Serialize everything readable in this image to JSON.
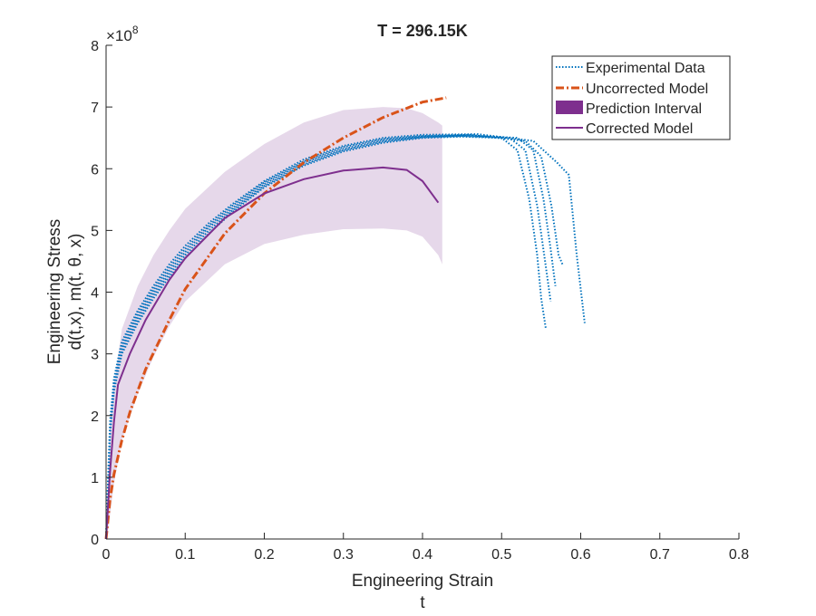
{
  "chart_data": {
    "type": "line",
    "title": "T = 296.15K",
    "xlabel": [
      "Engineering Strain",
      "t"
    ],
    "ylabel": [
      "Engineering Stress",
      "d(t,x), m(t, θ, x)"
    ],
    "xlim": [
      0,
      0.8
    ],
    "ylim": [
      0,
      8
    ],
    "y_exponent_label": "×10",
    "y_exponent_power": "8",
    "xticks": [
      0,
      0.1,
      0.2,
      0.3,
      0.4,
      0.5,
      0.6,
      0.7,
      0.8
    ],
    "xtick_labels": [
      "0",
      "0.1",
      "0.2",
      "0.3",
      "0.4",
      "0.5",
      "0.6",
      "0.7",
      "0.8"
    ],
    "yticks": [
      0,
      1,
      2,
      3,
      4,
      5,
      6,
      7,
      8
    ],
    "ytick_labels": [
      "0",
      "1",
      "2",
      "3",
      "4",
      "5",
      "6",
      "7",
      "8"
    ],
    "grid": false,
    "legend_position": "top-right",
    "colors": {
      "experimental": "#0072BD",
      "uncorrected": "#D95319",
      "interval_fill": "#E6D8EA",
      "interval_legend": "#7E2F8E",
      "corrected": "#7E2F8E"
    },
    "series": [
      {
        "name": "Experimental Data",
        "style": "dotted",
        "curves": [
          [
            [
              0,
              0
            ],
            [
              0.005,
              1.7
            ],
            [
              0.01,
              2.4
            ],
            [
              0.02,
              3.0
            ],
            [
              0.04,
              3.5
            ],
            [
              0.06,
              3.9
            ],
            [
              0.08,
              4.25
            ],
            [
              0.1,
              4.55
            ],
            [
              0.13,
              4.95
            ],
            [
              0.16,
              5.3
            ],
            [
              0.2,
              5.7
            ],
            [
              0.25,
              6.05
            ],
            [
              0.3,
              6.28
            ],
            [
              0.35,
              6.42
            ],
            [
              0.4,
              6.5
            ],
            [
              0.45,
              6.52
            ],
            [
              0.5,
              6.5
            ],
            [
              0.52,
              6.3
            ],
            [
              0.535,
              5.5
            ],
            [
              0.545,
              4.6
            ],
            [
              0.55,
              3.9
            ],
            [
              0.556,
              3.4
            ]
          ],
          [
            [
              0,
              0
            ],
            [
              0.005,
              1.75
            ],
            [
              0.01,
              2.45
            ],
            [
              0.02,
              3.05
            ],
            [
              0.04,
              3.55
            ],
            [
              0.06,
              3.95
            ],
            [
              0.08,
              4.3
            ],
            [
              0.1,
              4.6
            ],
            [
              0.13,
              5.0
            ],
            [
              0.16,
              5.33
            ],
            [
              0.2,
              5.72
            ],
            [
              0.25,
              6.07
            ],
            [
              0.3,
              6.3
            ],
            [
              0.35,
              6.44
            ],
            [
              0.4,
              6.51
            ],
            [
              0.45,
              6.53
            ],
            [
              0.51,
              6.5
            ],
            [
              0.53,
              6.3
            ],
            [
              0.545,
              5.4
            ],
            [
              0.555,
              4.5
            ],
            [
              0.562,
              3.85
            ]
          ],
          [
            [
              0,
              0
            ],
            [
              0.005,
              1.8
            ],
            [
              0.01,
              2.5
            ],
            [
              0.02,
              3.1
            ],
            [
              0.04,
              3.6
            ],
            [
              0.06,
              4.0
            ],
            [
              0.08,
              4.35
            ],
            [
              0.1,
              4.65
            ],
            [
              0.13,
              5.05
            ],
            [
              0.16,
              5.36
            ],
            [
              0.2,
              5.75
            ],
            [
              0.25,
              6.1
            ],
            [
              0.3,
              6.32
            ],
            [
              0.35,
              6.46
            ],
            [
              0.4,
              6.52
            ],
            [
              0.46,
              6.54
            ],
            [
              0.52,
              6.5
            ],
            [
              0.54,
              6.3
            ],
            [
              0.553,
              5.5
            ],
            [
              0.562,
              4.7
            ],
            [
              0.568,
              4.1
            ]
          ],
          [
            [
              0,
              0
            ],
            [
              0.005,
              1.85
            ],
            [
              0.01,
              2.55
            ],
            [
              0.02,
              3.15
            ],
            [
              0.04,
              3.65
            ],
            [
              0.06,
              4.05
            ],
            [
              0.08,
              4.4
            ],
            [
              0.1,
              4.7
            ],
            [
              0.13,
              5.08
            ],
            [
              0.16,
              5.4
            ],
            [
              0.2,
              5.78
            ],
            [
              0.25,
              6.12
            ],
            [
              0.3,
              6.35
            ],
            [
              0.35,
              6.48
            ],
            [
              0.4,
              6.53
            ],
            [
              0.46,
              6.55
            ],
            [
              0.53,
              6.45
            ],
            [
              0.55,
              6.2
            ],
            [
              0.563,
              5.4
            ],
            [
              0.572,
              4.6
            ],
            [
              0.577,
              4.45
            ]
          ],
          [
            [
              0,
              0
            ],
            [
              0.005,
              1.9
            ],
            [
              0.01,
              2.6
            ],
            [
              0.02,
              3.2
            ],
            [
              0.04,
              3.7
            ],
            [
              0.06,
              4.1
            ],
            [
              0.08,
              4.45
            ],
            [
              0.1,
              4.75
            ],
            [
              0.13,
              5.12
            ],
            [
              0.16,
              5.43
            ],
            [
              0.2,
              5.8
            ],
            [
              0.25,
              6.15
            ],
            [
              0.3,
              6.37
            ],
            [
              0.35,
              6.5
            ],
            [
              0.4,
              6.55
            ],
            [
              0.47,
              6.56
            ],
            [
              0.54,
              6.45
            ],
            [
              0.57,
              6.1
            ],
            [
              0.585,
              5.9
            ],
            [
              0.595,
              4.6
            ],
            [
              0.605,
              3.5
            ]
          ]
        ]
      },
      {
        "name": "Uncorrected Model",
        "style": "dashdot",
        "points": [
          [
            0,
            0
          ],
          [
            0.005,
            0.65
          ],
          [
            0.01,
            1.05
          ],
          [
            0.02,
            1.6
          ],
          [
            0.03,
            2.05
          ],
          [
            0.05,
            2.75
          ],
          [
            0.08,
            3.55
          ],
          [
            0.1,
            4.05
          ],
          [
            0.15,
            4.95
          ],
          [
            0.2,
            5.6
          ],
          [
            0.25,
            6.1
          ],
          [
            0.3,
            6.5
          ],
          [
            0.35,
            6.83
          ],
          [
            0.4,
            7.08
          ],
          [
            0.43,
            7.15
          ]
        ]
      },
      {
        "name": "Prediction Interval",
        "style": "fill",
        "upper": [
          [
            0.001,
            0.5
          ],
          [
            0.005,
            1.9
          ],
          [
            0.01,
            2.5
          ],
          [
            0.02,
            3.4
          ],
          [
            0.04,
            4.1
          ],
          [
            0.06,
            4.6
          ],
          [
            0.08,
            5.0
          ],
          [
            0.1,
            5.35
          ],
          [
            0.15,
            5.95
          ],
          [
            0.2,
            6.4
          ],
          [
            0.25,
            6.75
          ],
          [
            0.3,
            6.95
          ],
          [
            0.35,
            7.0
          ],
          [
            0.38,
            6.98
          ],
          [
            0.4,
            6.9
          ],
          [
            0.42,
            6.75
          ],
          [
            0.425,
            6.7
          ]
        ],
        "lower": [
          [
            0.001,
            0.0
          ],
          [
            0.005,
            0.4
          ],
          [
            0.01,
            0.9
          ],
          [
            0.02,
            1.6
          ],
          [
            0.04,
            2.35
          ],
          [
            0.06,
            2.95
          ],
          [
            0.08,
            3.45
          ],
          [
            0.1,
            3.85
          ],
          [
            0.15,
            4.45
          ],
          [
            0.2,
            4.78
          ],
          [
            0.25,
            4.93
          ],
          [
            0.3,
            5.02
          ],
          [
            0.35,
            5.03
          ],
          [
            0.38,
            5.0
          ],
          [
            0.4,
            4.9
          ],
          [
            0.42,
            4.6
          ],
          [
            0.425,
            4.45
          ]
        ]
      },
      {
        "name": "Corrected Model",
        "style": "solid",
        "points": [
          [
            0,
            0
          ],
          [
            0.005,
            1.1
          ],
          [
            0.01,
            1.9
          ],
          [
            0.015,
            2.5
          ],
          [
            0.03,
            3.0
          ],
          [
            0.05,
            3.55
          ],
          [
            0.08,
            4.2
          ],
          [
            0.1,
            4.55
          ],
          [
            0.15,
            5.2
          ],
          [
            0.2,
            5.6
          ],
          [
            0.25,
            5.83
          ],
          [
            0.3,
            5.97
          ],
          [
            0.35,
            6.02
          ],
          [
            0.38,
            5.98
          ],
          [
            0.4,
            5.8
          ],
          [
            0.42,
            5.45
          ]
        ]
      }
    ]
  }
}
